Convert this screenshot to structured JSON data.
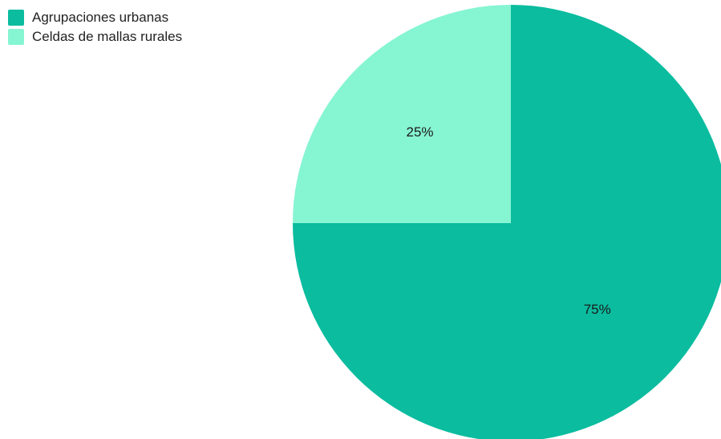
{
  "chart_data": {
    "type": "pie",
    "categories": [
      "Agrupaciones urbanas",
      "Celdas de mallas rurales"
    ],
    "values": [
      75,
      25
    ],
    "value_labels": [
      "75%",
      "25%"
    ],
    "colors": [
      "#0BBC9F",
      "#86F5D2"
    ],
    "legend_placement": "top-left",
    "title": "",
    "start_angle_deg": 0,
    "direction": "clockwise"
  },
  "legend": {
    "items": [
      {
        "label": "Agrupaciones urbanas",
        "color": "#0BBC9F"
      },
      {
        "label": "Celdas de mallas rurales",
        "color": "#86F5D2"
      }
    ]
  }
}
